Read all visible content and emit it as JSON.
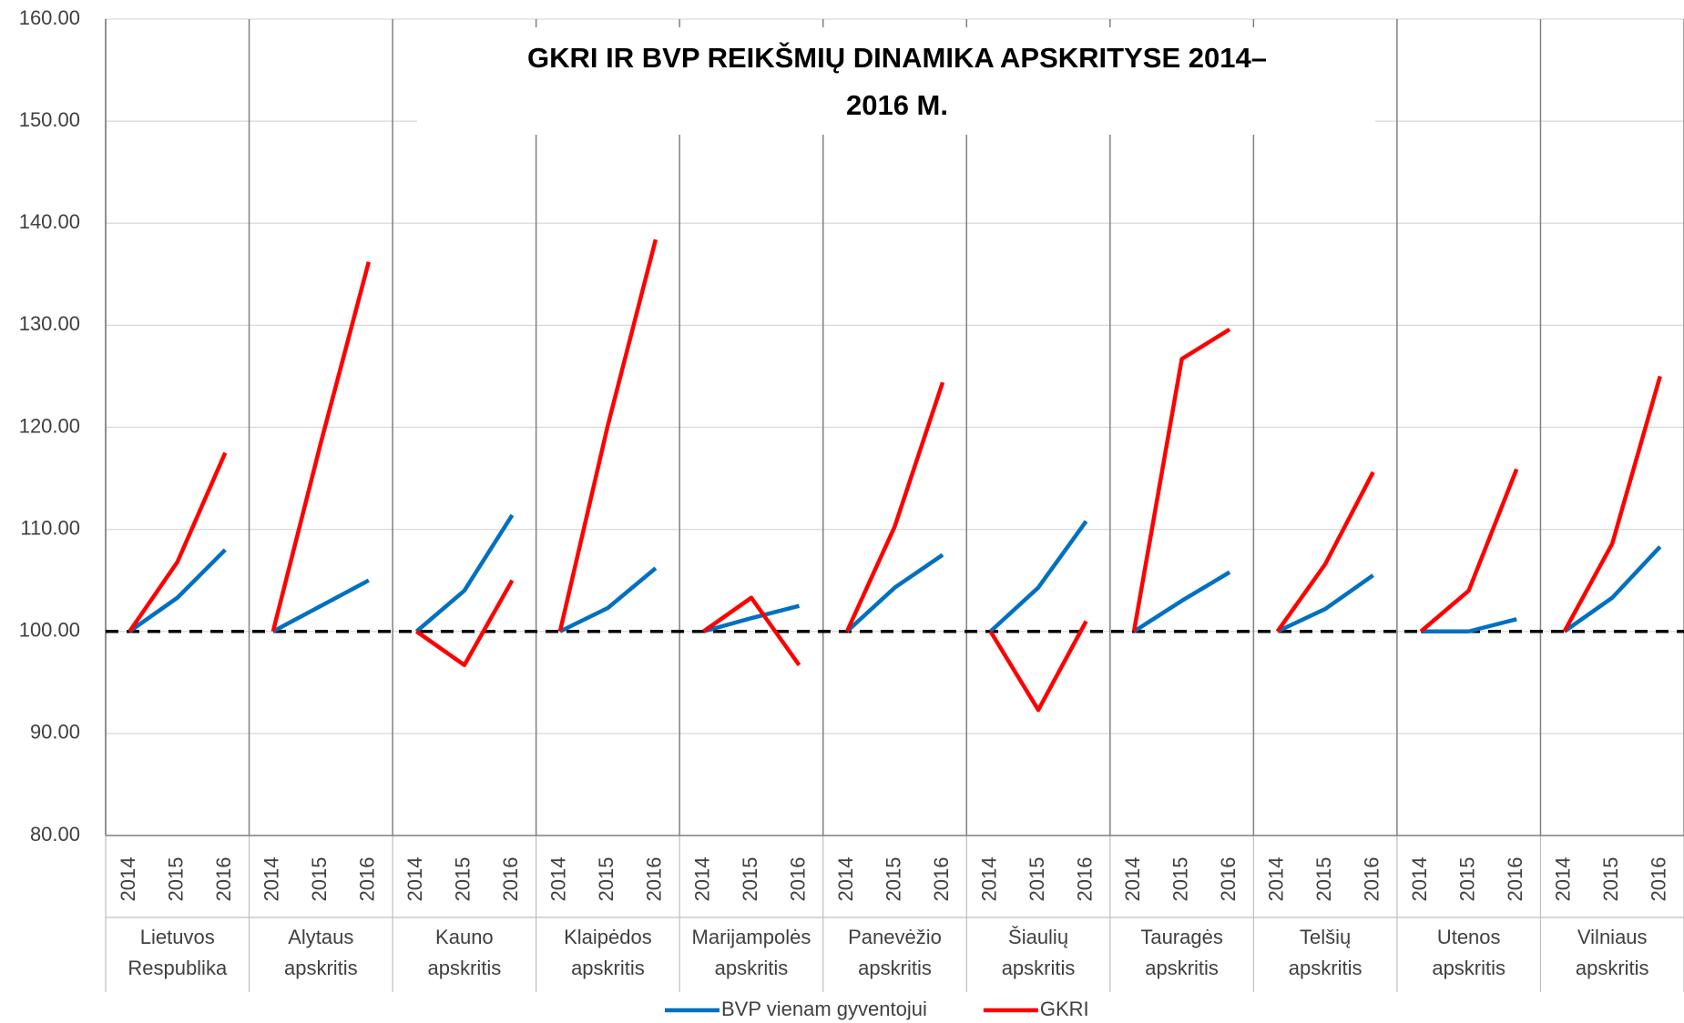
{
  "chart_data": {
    "type": "line",
    "title": [
      "GKRI IR BVP REIKŠMIŲ DINAMIKA APSKRITYSE 2014–",
      "2016 M."
    ],
    "categories": [
      "2014",
      "2015",
      "2016",
      "2014",
      "2015",
      "2016",
      "2014",
      "2015",
      "2016",
      "2014",
      "2015",
      "2016",
      "2014",
      "2015",
      "2016",
      "2014",
      "2015",
      "2016",
      "2014",
      "2015",
      "2016",
      "2014",
      "2015",
      "2016",
      "2014",
      "2015",
      "2016",
      "2014",
      "2015",
      "2016",
      "2014",
      "2015",
      "2016"
    ],
    "groups": [
      [
        "Lietuvos",
        "Respublika"
      ],
      [
        "Alytaus",
        "apskritis"
      ],
      [
        "Kauno",
        "apskritis"
      ],
      [
        "Klaipėdos",
        "apskritis"
      ],
      [
        "Marijampolės",
        "apskritis"
      ],
      [
        "Panevėžio",
        "apskritis"
      ],
      [
        "Šiaulių",
        "apskritis"
      ],
      [
        "Tauragės",
        "apskritis"
      ],
      [
        "Telšių",
        "apskritis"
      ],
      [
        "Utenos",
        "apskritis"
      ],
      [
        "Vilniaus",
        "apskritis"
      ]
    ],
    "series": [
      {
        "name": "BVP vienam gyventojui",
        "color": "#0070c0",
        "values": [
          100,
          103.3,
          108,
          100,
          102.5,
          105,
          100,
          104,
          111.4,
          100,
          102.3,
          106.2,
          100,
          101.3,
          102.5,
          100,
          104.3,
          107.5,
          100,
          104.3,
          110.8,
          100,
          103,
          105.8,
          100,
          102.2,
          105.5,
          100,
          100,
          101.2,
          100,
          103.3,
          108.3
        ]
      },
      {
        "name": "GKRI",
        "color": "#ff0000",
        "values": [
          100,
          106.8,
          117.5,
          100,
          118.5,
          136.2,
          100,
          96.7,
          105,
          100,
          120.2,
          138.4,
          100,
          103.3,
          96.7,
          100,
          110.3,
          124.4,
          100,
          92.3,
          101,
          100,
          126.7,
          129.6,
          100,
          106.6,
          115.6,
          100,
          104,
          115.9,
          100,
          108.6,
          125
        ]
      }
    ],
    "ylim": [
      80,
      160
    ],
    "yticks": [
      {
        "value": 80,
        "label": "80.00"
      },
      {
        "value": 90,
        "label": "90.00"
      },
      {
        "value": 100,
        "label": "100.00"
      },
      {
        "value": 110,
        "label": "110.00"
      },
      {
        "value": 120,
        "label": "120.00"
      },
      {
        "value": 130,
        "label": "130.00"
      },
      {
        "value": 140,
        "label": "140.00"
      },
      {
        "value": 150,
        "label": "150.00"
      },
      {
        "value": 160,
        "label": "160.00"
      }
    ],
    "reference_line": 100,
    "grid": true,
    "legend": "bottom"
  }
}
